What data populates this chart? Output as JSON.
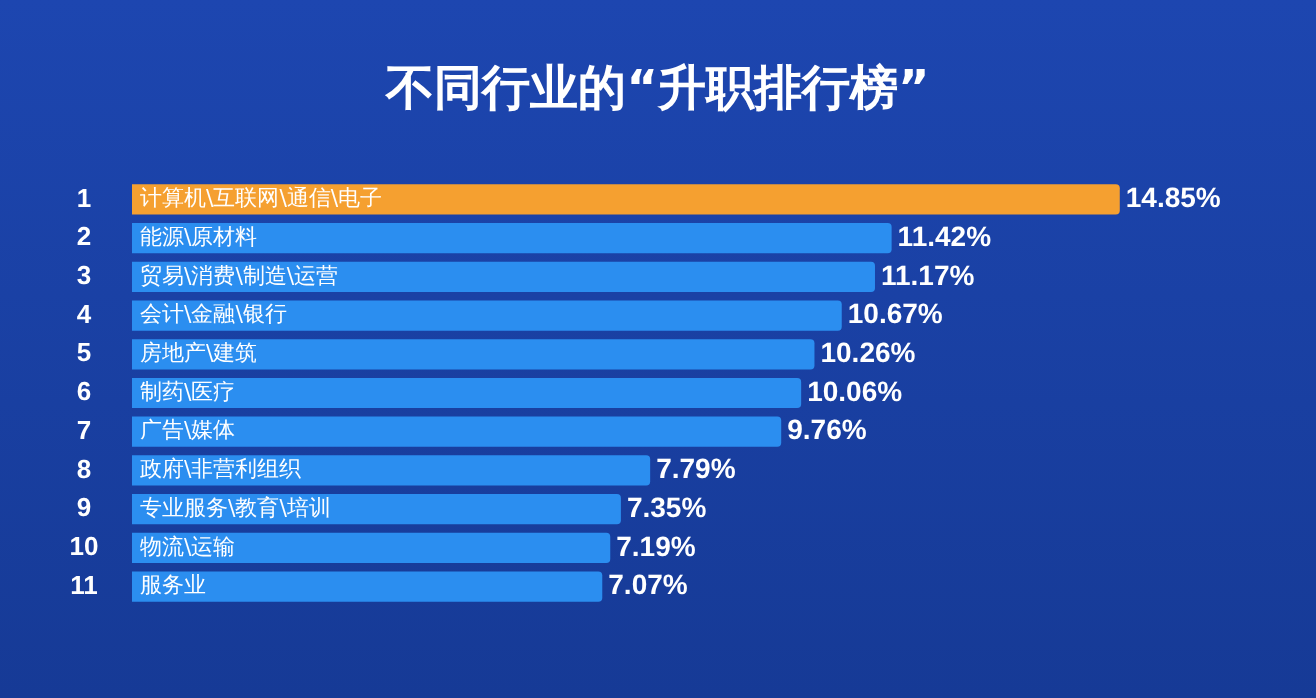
{
  "chart_data": {
    "type": "bar",
    "orientation": "horizontal",
    "title": "不同行业的“升职排行榜”",
    "categories": [
      "计算机\\互联网\\通信\\电子",
      "能源\\原材料",
      "贸易\\消费\\制造\\运营",
      "会计\\金融\\银行",
      "房地产\\建筑",
      "制药\\医疗",
      "广告\\媒体",
      "政府\\非营利组织",
      "专业服务\\教育\\培训",
      "物流\\运输",
      "服务业"
    ],
    "values": [
      14.85,
      11.42,
      11.17,
      10.67,
      10.26,
      10.06,
      9.76,
      7.79,
      7.35,
      7.19,
      7.07
    ],
    "colors": [
      "#f5a030",
      "#2b8ef0",
      "#2b8ef0",
      "#2b8ef0",
      "#2b8ef0",
      "#2b8ef0",
      "#2b8ef0",
      "#2b8ef0",
      "#2b8ef0",
      "#2b8ef0",
      "#2b8ef0"
    ],
    "value_labels": [
      "14.85%",
      "11.42%",
      "11.17%",
      "10.67%",
      "10.26%",
      "10.06%",
      "9.76%",
      "7.79%",
      "7.35%",
      "7.19%",
      "7.07%"
    ],
    "xlim": [
      0,
      17.8
    ],
    "annotations": [
      "1",
      "2",
      "3",
      "4",
      "5",
      "6",
      "7",
      "8",
      "9",
      "10",
      "11"
    ]
  }
}
